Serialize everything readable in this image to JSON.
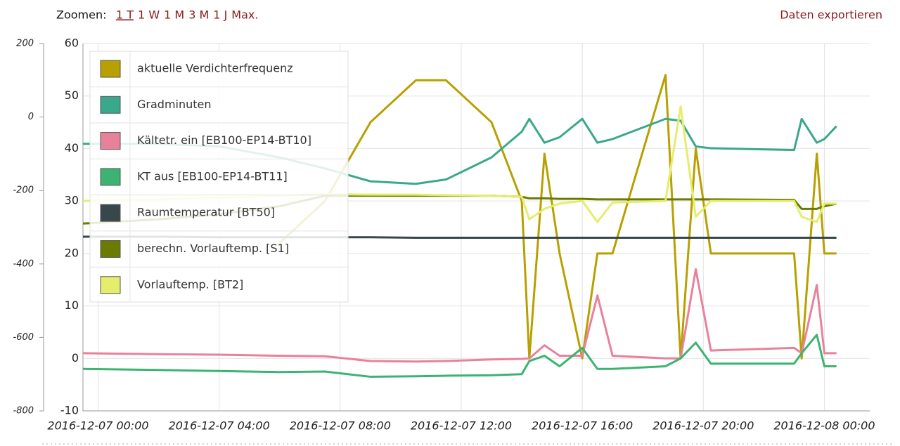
{
  "toolbar": {
    "zoom_label": "Zoomen:",
    "zoom_options": [
      "1 T",
      "1 W",
      "1 M",
      "3 M",
      "1 J",
      "Max."
    ],
    "export": "Daten exportieren"
  },
  "chart_data": {
    "type": "line",
    "grid": true,
    "xlim": [
      "2016-12-06 23:30",
      "2016-12-08 01:30"
    ],
    "xticks": [
      "2016-12-07 00:00",
      "2016-12-07 04:00",
      "2016-12-07 08:00",
      "2016-12-07 12:00",
      "2016-12-07 16:00",
      "2016-12-07 20:00",
      "2016-12-08 00:00"
    ],
    "ylim": [
      -10,
      60
    ],
    "yticks": [
      -10,
      0,
      10,
      20,
      30,
      40,
      50,
      60
    ],
    "y2lim": [
      -800,
      200
    ],
    "y2ticks": [
      -800,
      -600,
      -400,
      -200,
      0,
      200
    ],
    "x": [
      "2016-12-06 23:30",
      "2016-12-07 02:00",
      "2016-12-07 04:00",
      "2016-12-07 06:00",
      "2016-12-07 07:30",
      "2016-12-07 09:00",
      "2016-12-07 10:30",
      "2016-12-07 11:30",
      "2016-12-07 13:00",
      "2016-12-07 14:00",
      "2016-12-07 14:15",
      "2016-12-07 14:45",
      "2016-12-07 15:15",
      "2016-12-07 16:00",
      "2016-12-07 16:30",
      "2016-12-07 17:00",
      "2016-12-07 18:45",
      "2016-12-07 19:15",
      "2016-12-07 19:45",
      "2016-12-07 20:15",
      "2016-12-07 23:00",
      "2016-12-07 23:15",
      "2016-12-07 23:45",
      "2016-12-08 00:00",
      "2016-12-08 00:24"
    ],
    "series": [
      {
        "name": "aktuelle Verdichterfrequenz",
        "color": "#b8a000",
        "values": [
          null,
          null,
          null,
          22,
          30,
          45,
          53,
          53,
          45,
          30,
          0,
          39,
          20,
          0,
          20,
          20,
          54,
          0,
          40,
          20,
          20,
          0,
          39,
          20,
          20
        ]
      },
      {
        "name": "Gradminuten",
        "color": "#3aa88a",
        "axis": "y2",
        "values": [
          -73,
          -73,
          -80,
          -110,
          -140,
          -175,
          -182,
          -170,
          -110,
          -40,
          -5,
          -70,
          -55,
          -5,
          -70,
          -60,
          -5,
          -10,
          -80,
          -85,
          -90,
          -5,
          -70,
          -60,
          -25
        ]
      },
      {
        "name": "Kältetr. ein [EB100-EP14-BT10]",
        "color": "#e8819c",
        "values": [
          1,
          0.8,
          0.7,
          0.5,
          0.4,
          -0.5,
          -0.6,
          -0.5,
          -0.2,
          -0.1,
          0,
          2.5,
          0.5,
          0.5,
          12,
          0.5,
          0,
          0,
          17,
          1.5,
          2,
          1,
          14,
          1,
          1
        ]
      },
      {
        "name": "KT aus [EB100-EP14-BT11]",
        "color": "#3cb371",
        "values": [
          -2,
          -2.2,
          -2.4,
          -2.6,
          -2.5,
          -3.5,
          -3.4,
          -3.3,
          -3.2,
          -3,
          -0.5,
          0.5,
          -1.5,
          2,
          -2,
          -2,
          -1.5,
          0,
          3,
          -1,
          -1,
          1,
          4.5,
          -1.5,
          -1.5
        ]
      },
      {
        "name": "Raumtemperatur [BT50]",
        "color": "#37474a",
        "values": [
          23.2,
          23.2,
          23.1,
          23.1,
          23.1,
          23.1,
          23,
          23,
          23,
          23,
          23,
          23,
          23,
          23,
          23,
          23,
          23,
          23,
          23,
          23,
          23,
          23,
          23,
          23,
          23
        ]
      },
      {
        "name": "berechn. Vorlauftemp. [S1]",
        "color": "#6b7a00",
        "values": [
          25.7,
          26.5,
          27.5,
          29,
          31,
          31,
          31,
          31,
          31,
          30.8,
          30.5,
          30.5,
          30.4,
          30.4,
          30.3,
          30.3,
          30.3,
          30.3,
          30.3,
          30.3,
          30.2,
          28.5,
          28.5,
          29,
          29.5
        ]
      },
      {
        "name": "Vorlauftemp. [BT2]",
        "color": "#e4ee6c",
        "values": [
          30,
          30.3,
          30.6,
          31,
          31.3,
          31.2,
          31.2,
          31.1,
          31,
          30.8,
          26.5,
          28.5,
          29.5,
          30,
          26,
          29.7,
          30,
          48,
          27,
          30,
          30,
          27,
          26,
          29.5,
          29.5
        ]
      }
    ]
  }
}
